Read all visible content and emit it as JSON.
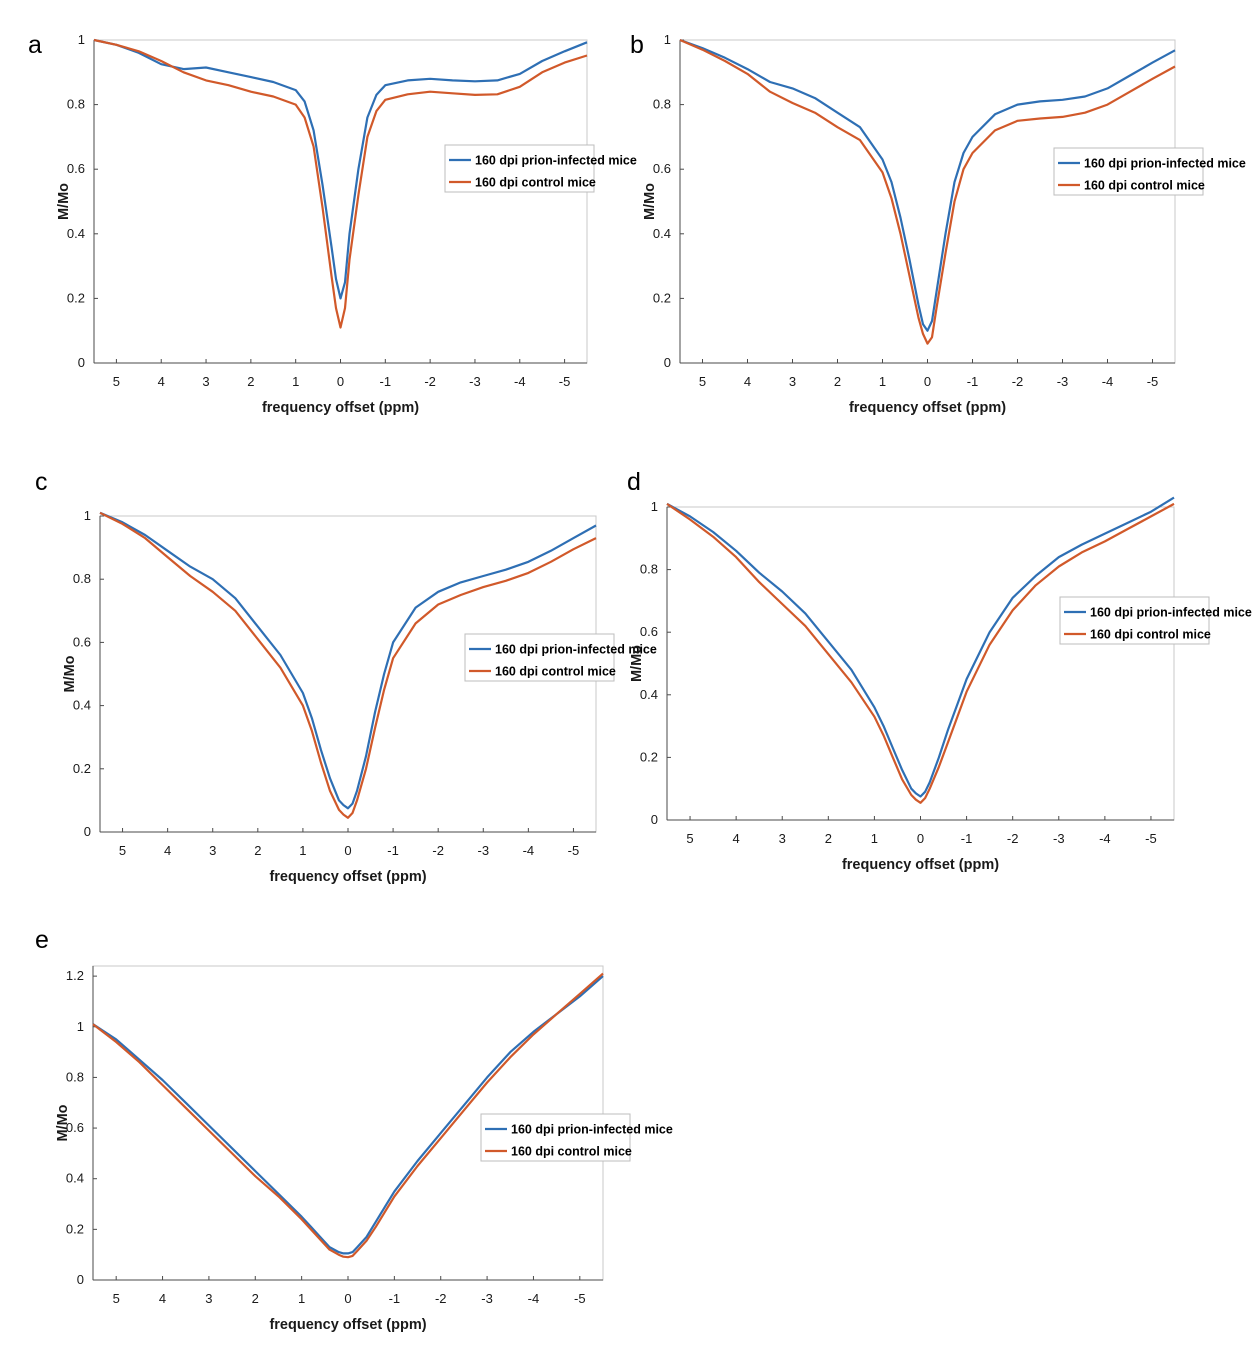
{
  "colors": {
    "infected": "#2e6fb4",
    "control": "#d1592a",
    "axis": "#4a4a4a"
  },
  "chart_data": [
    {
      "panel": "a",
      "type": "line",
      "xlabel": "frequency offset (ppm)",
      "ylabel": "M/Mo",
      "xlim": [
        5.5,
        -5.5
      ],
      "ylim": [
        0,
        1
      ],
      "xticks": [
        5,
        4,
        3,
        2,
        1,
        0,
        -1,
        -2,
        -3,
        -4,
        -5
      ],
      "xtick_labels": [
        "5",
        "4",
        "3",
        "2",
        "1",
        "0",
        "-1",
        "-2",
        "-3",
        "-4",
        "-5"
      ],
      "yticks": [
        0,
        0.2,
        0.4,
        0.6,
        0.8,
        1
      ],
      "ytick_labels": [
        "0",
        "0.2",
        "0.4",
        "0.6",
        "0.8",
        "1"
      ],
      "legend_position": "center-right",
      "series": [
        {
          "name": "160 dpi prion-infected mice",
          "color_key": "infected",
          "x": [
            5.5,
            5,
            4.5,
            4,
            3.5,
            3,
            2.5,
            2,
            1.5,
            1,
            0.8,
            0.6,
            0.4,
            0.2,
            0.1,
            0,
            -0.1,
            -0.2,
            -0.4,
            -0.6,
            -0.8,
            -1,
            -1.5,
            -2,
            -2.5,
            -3,
            -3.5,
            -4,
            -4.5,
            -5,
            -5.5
          ],
          "y": [
            1.0,
            0.985,
            0.96,
            0.925,
            0.91,
            0.915,
            0.9,
            0.885,
            0.87,
            0.845,
            0.81,
            0.72,
            0.55,
            0.36,
            0.26,
            0.2,
            0.25,
            0.4,
            0.6,
            0.76,
            0.83,
            0.86,
            0.875,
            0.88,
            0.875,
            0.872,
            0.875,
            0.895,
            0.935,
            0.965,
            0.993
          ]
        },
        {
          "name": "160 dpi control mice",
          "color_key": "control",
          "x": [
            5.5,
            5,
            4.5,
            4,
            3.5,
            3,
            2.5,
            2,
            1.5,
            1,
            0.8,
            0.6,
            0.4,
            0.2,
            0.1,
            0,
            -0.1,
            -0.2,
            -0.4,
            -0.6,
            -0.8,
            -1,
            -1.5,
            -2,
            -2.5,
            -3,
            -3.5,
            -4,
            -4.5,
            -5,
            -5.5
          ],
          "y": [
            1.0,
            0.985,
            0.965,
            0.935,
            0.9,
            0.875,
            0.86,
            0.84,
            0.825,
            0.8,
            0.76,
            0.67,
            0.48,
            0.27,
            0.17,
            0.11,
            0.17,
            0.32,
            0.52,
            0.7,
            0.78,
            0.815,
            0.832,
            0.84,
            0.835,
            0.83,
            0.832,
            0.855,
            0.9,
            0.93,
            0.952
          ]
        }
      ]
    },
    {
      "panel": "b",
      "type": "line",
      "xlabel": "frequency offset (ppm)",
      "ylabel": "M/Mo",
      "xlim": [
        5.5,
        -5.5
      ],
      "ylim": [
        0,
        1
      ],
      "xticks": [
        5,
        4,
        3,
        2,
        1,
        0,
        -1,
        -2,
        -3,
        -4,
        -5
      ],
      "xtick_labels": [
        "5",
        "4",
        "3",
        "2",
        "1",
        "0",
        "-1",
        "-2",
        "-3",
        "-4",
        "-5"
      ],
      "yticks": [
        0,
        0.2,
        0.4,
        0.6,
        0.8,
        1
      ],
      "ytick_labels": [
        "0",
        "0.2",
        "0.4",
        "0.6",
        "0.8",
        "1"
      ],
      "legend_position": "center-right",
      "series": [
        {
          "name": "160 dpi prion-infected mice",
          "color_key": "infected",
          "x": [
            5.5,
            5,
            4.5,
            4,
            3.5,
            3,
            2.5,
            2,
            1.5,
            1,
            0.8,
            0.6,
            0.4,
            0.2,
            0.1,
            0,
            -0.1,
            -0.2,
            -0.4,
            -0.6,
            -0.8,
            -1,
            -1.5,
            -2,
            -2.5,
            -3,
            -3.5,
            -4,
            -4.5,
            -5,
            -5.5
          ],
          "y": [
            1.0,
            0.975,
            0.945,
            0.91,
            0.87,
            0.85,
            0.82,
            0.775,
            0.73,
            0.63,
            0.56,
            0.45,
            0.32,
            0.18,
            0.12,
            0.1,
            0.13,
            0.22,
            0.4,
            0.56,
            0.65,
            0.7,
            0.77,
            0.8,
            0.81,
            0.815,
            0.825,
            0.85,
            0.89,
            0.93,
            0.968
          ]
        },
        {
          "name": "160 dpi control mice",
          "color_key": "control",
          "x": [
            5.5,
            5,
            4.5,
            4,
            3.5,
            3,
            2.5,
            2,
            1.5,
            1,
            0.8,
            0.6,
            0.4,
            0.2,
            0.1,
            0,
            -0.1,
            -0.2,
            -0.4,
            -0.6,
            -0.8,
            -1,
            -1.5,
            -2,
            -2.5,
            -3,
            -3.5,
            -4,
            -4.5,
            -5,
            -5.5
          ],
          "y": [
            1.0,
            0.97,
            0.935,
            0.895,
            0.84,
            0.805,
            0.775,
            0.73,
            0.69,
            0.59,
            0.51,
            0.4,
            0.27,
            0.14,
            0.09,
            0.06,
            0.08,
            0.17,
            0.34,
            0.5,
            0.6,
            0.65,
            0.72,
            0.75,
            0.757,
            0.762,
            0.775,
            0.8,
            0.84,
            0.88,
            0.918
          ]
        }
      ]
    },
    {
      "panel": "c",
      "type": "line",
      "xlabel": "frequency offset (ppm)",
      "ylabel": "M/Mo",
      "xlim": [
        5.5,
        -5.5
      ],
      "ylim": [
        0,
        1
      ],
      "xticks": [
        5,
        4,
        3,
        2,
        1,
        0,
        -1,
        -2,
        -3,
        -4,
        -5
      ],
      "xtick_labels": [
        "5",
        "4",
        "3",
        "2",
        "1",
        "0",
        "-1",
        "-2",
        "-3",
        "-4",
        "-5"
      ],
      "yticks": [
        0,
        0.2,
        0.4,
        0.6,
        0.8,
        1
      ],
      "ytick_labels": [
        "0",
        "0.2",
        "0.4",
        "0.6",
        "0.8",
        "1"
      ],
      "legend_position": "center-right",
      "series": [
        {
          "name": "160 dpi prion-infected mice",
          "color_key": "infected",
          "x": [
            5.5,
            5,
            4.5,
            4,
            3.5,
            3,
            2.5,
            2,
            1.5,
            1,
            0.8,
            0.6,
            0.4,
            0.2,
            0.1,
            0,
            -0.1,
            -0.2,
            -0.4,
            -0.6,
            -0.8,
            -1,
            -1.5,
            -2,
            -2.5,
            -3,
            -3.5,
            -4,
            -4.5,
            -5,
            -5.5
          ],
          "y": [
            1.01,
            0.98,
            0.94,
            0.89,
            0.84,
            0.8,
            0.74,
            0.65,
            0.56,
            0.44,
            0.36,
            0.26,
            0.17,
            0.1,
            0.085,
            0.075,
            0.09,
            0.13,
            0.24,
            0.38,
            0.5,
            0.6,
            0.71,
            0.76,
            0.79,
            0.81,
            0.83,
            0.855,
            0.89,
            0.93,
            0.97
          ]
        },
        {
          "name": "160 dpi control mice",
          "color_key": "control",
          "x": [
            5.5,
            5,
            4.5,
            4,
            3.5,
            3,
            2.5,
            2,
            1.5,
            1,
            0.8,
            0.6,
            0.4,
            0.2,
            0.1,
            0,
            -0.1,
            -0.2,
            -0.4,
            -0.6,
            -0.8,
            -1,
            -1.5,
            -2,
            -2.5,
            -3,
            -3.5,
            -4,
            -4.5,
            -5,
            -5.5
          ],
          "y": [
            1.01,
            0.975,
            0.93,
            0.87,
            0.81,
            0.76,
            0.7,
            0.61,
            0.52,
            0.4,
            0.32,
            0.22,
            0.13,
            0.07,
            0.055,
            0.045,
            0.06,
            0.1,
            0.2,
            0.33,
            0.45,
            0.55,
            0.66,
            0.72,
            0.75,
            0.775,
            0.795,
            0.82,
            0.855,
            0.895,
            0.93
          ]
        }
      ]
    },
    {
      "panel": "d",
      "type": "line",
      "xlabel": "frequency offset (ppm)",
      "ylabel": "M/Mo",
      "xlim": [
        5.5,
        -5.5
      ],
      "ylim": [
        0,
        1
      ],
      "xticks": [
        5,
        4,
        3,
        2,
        1,
        0,
        -1,
        -2,
        -3,
        -4,
        -5
      ],
      "xtick_labels": [
        "5",
        "4",
        "3",
        "2",
        "1",
        "0",
        "-1",
        "-2",
        "-3",
        "-4",
        "-5"
      ],
      "yticks": [
        0,
        0.2,
        0.4,
        0.6,
        0.8,
        1
      ],
      "ytick_labels": [
        "0",
        "0.2",
        "0.4",
        "0.6",
        "0.8",
        "1"
      ],
      "legend_position": "center-right",
      "series": [
        {
          "name": "160 dpi prion-infected mice",
          "color_key": "infected",
          "x": [
            5.5,
            5,
            4.5,
            4,
            3.5,
            3,
            2.5,
            2,
            1.5,
            1,
            0.8,
            0.6,
            0.4,
            0.2,
            0.1,
            0,
            -0.1,
            -0.2,
            -0.4,
            -0.6,
            -0.8,
            -1,
            -1.5,
            -2,
            -2.5,
            -3,
            -3.5,
            -4,
            -4.5,
            -5,
            -5.5
          ],
          "y": [
            1.01,
            0.97,
            0.92,
            0.86,
            0.79,
            0.73,
            0.66,
            0.57,
            0.48,
            0.36,
            0.3,
            0.23,
            0.16,
            0.1,
            0.085,
            0.075,
            0.09,
            0.12,
            0.2,
            0.29,
            0.37,
            0.45,
            0.6,
            0.71,
            0.78,
            0.84,
            0.88,
            0.915,
            0.95,
            0.985,
            1.03
          ]
        },
        {
          "name": "160 dpi control mice",
          "color_key": "control",
          "x": [
            5.5,
            5,
            4.5,
            4,
            3.5,
            3,
            2.5,
            2,
            1.5,
            1,
            0.8,
            0.6,
            0.4,
            0.2,
            0.1,
            0,
            -0.1,
            -0.2,
            -0.4,
            -0.6,
            -0.8,
            -1,
            -1.5,
            -2,
            -2.5,
            -3,
            -3.5,
            -4,
            -4.5,
            -5,
            -5.5
          ],
          "y": [
            1.01,
            0.96,
            0.905,
            0.84,
            0.76,
            0.69,
            0.62,
            0.53,
            0.44,
            0.33,
            0.27,
            0.2,
            0.13,
            0.08,
            0.065,
            0.055,
            0.07,
            0.1,
            0.17,
            0.25,
            0.33,
            0.41,
            0.56,
            0.67,
            0.75,
            0.81,
            0.855,
            0.89,
            0.93,
            0.97,
            1.01
          ]
        }
      ]
    },
    {
      "panel": "e",
      "type": "line",
      "xlabel": "frequency offset (ppm)",
      "ylabel": "M/Mo",
      "xlim": [
        5.5,
        -5.5
      ],
      "ylim": [
        0,
        1.24
      ],
      "xticks": [
        5,
        4,
        3,
        2,
        1,
        0,
        -1,
        -2,
        -3,
        -4,
        -5
      ],
      "xtick_labels": [
        "5",
        "4",
        "3",
        "2",
        "1",
        "0",
        "-1",
        "-2",
        "-3",
        "-4",
        "-5"
      ],
      "yticks": [
        0,
        0.2,
        0.4,
        0.6,
        0.8,
        1,
        1.2
      ],
      "ytick_labels": [
        "0",
        "0.2",
        "0.4",
        "0.6",
        "0.8",
        "1",
        "1.2"
      ],
      "legend_position": "center-right",
      "series": [
        {
          "name": "160 dpi prion-infected mice",
          "color_key": "infected",
          "x": [
            5.5,
            5,
            4.5,
            4,
            3.5,
            3,
            2.5,
            2,
            1.5,
            1,
            0.8,
            0.6,
            0.4,
            0.2,
            0.1,
            0,
            -0.1,
            -0.2,
            -0.4,
            -0.6,
            -0.8,
            -1,
            -1.5,
            -2,
            -2.5,
            -3,
            -3.5,
            -4,
            -4.5,
            -5,
            -5.5
          ],
          "y": [
            1.01,
            0.95,
            0.87,
            0.79,
            0.7,
            0.61,
            0.52,
            0.43,
            0.34,
            0.25,
            0.21,
            0.17,
            0.13,
            0.11,
            0.105,
            0.105,
            0.11,
            0.13,
            0.17,
            0.23,
            0.29,
            0.35,
            0.47,
            0.58,
            0.69,
            0.8,
            0.9,
            0.98,
            1.05,
            1.12,
            1.2
          ]
        },
        {
          "name": "160 dpi control mice",
          "color_key": "control",
          "x": [
            5.5,
            5,
            4.5,
            4,
            3.5,
            3,
            2.5,
            2,
            1.5,
            1,
            0.8,
            0.6,
            0.4,
            0.2,
            0.1,
            0,
            -0.1,
            -0.2,
            -0.4,
            -0.6,
            -0.8,
            -1,
            -1.5,
            -2,
            -2.5,
            -3,
            -3.5,
            -4,
            -4.5,
            -5,
            -5.5
          ],
          "y": [
            1.01,
            0.94,
            0.86,
            0.77,
            0.68,
            0.59,
            0.5,
            0.41,
            0.33,
            0.24,
            0.2,
            0.16,
            0.12,
            0.1,
            0.092,
            0.09,
            0.095,
            0.115,
            0.155,
            0.21,
            0.27,
            0.33,
            0.45,
            0.56,
            0.67,
            0.78,
            0.88,
            0.97,
            1.05,
            1.13,
            1.21
          ]
        }
      ]
    }
  ]
}
